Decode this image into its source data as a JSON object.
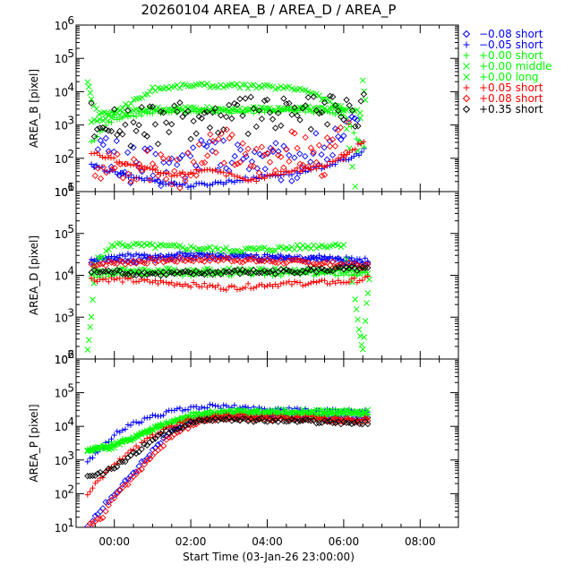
{
  "chart_data": {
    "type": "scatter",
    "title": "20260104 AREA_B / AREA_D / AREA_P",
    "xlabel": "Start Time (03-Jan-26 23:00:00)",
    "x_units": "hours after 00:00 (03-Jan-26 23:00:00 + 1h)",
    "xlim": [
      -1.0,
      9.0
    ],
    "x_ticks": [
      0,
      2,
      4,
      6,
      8
    ],
    "x_tick_labels": [
      "00:00",
      "02:00",
      "04:00",
      "06:00",
      "08:00"
    ],
    "panels": [
      {
        "id": "area_b",
        "ylabel": "AREA_B [pixel]",
        "ylim": [
          10,
          1000000
        ],
        "yscale": "log",
        "y_tick_labels": [
          "10",
          "10",
          "10",
          "10",
          "10",
          "10"
        ],
        "y_tick_exps": [
          "1",
          "2",
          "3",
          "4",
          "5",
          "6"
        ]
      },
      {
        "id": "area_d",
        "ylabel": "AREA_D [pixel]",
        "ylim": [
          100,
          1000000
        ],
        "yscale": "log",
        "y_tick_labels": [
          "10",
          "10",
          "10",
          "10",
          "10"
        ],
        "y_tick_exps": [
          "2",
          "3",
          "4",
          "5",
          "6"
        ]
      },
      {
        "id": "area_p",
        "ylabel": "AREA_P [pixel]",
        "ylim": [
          10,
          1000000
        ],
        "yscale": "log",
        "y_tick_labels": [
          "10",
          "10",
          "10",
          "10",
          "10",
          "10"
        ],
        "y_tick_exps": [
          "1",
          "2",
          "3",
          "4",
          "5",
          "6"
        ]
      }
    ],
    "series": [
      {
        "name": "−0.08 short",
        "symbol": "diamond",
        "color": "#0000ff",
        "area_b": [
          [
            -0.5,
            200
          ],
          [
            0.2,
            80
          ],
          [
            0.8,
            60
          ],
          [
            1.5,
            40
          ],
          [
            2.2,
            150
          ],
          [
            3.0,
            80
          ],
          [
            3.6,
            150
          ],
          [
            4.5,
            60
          ],
          [
            5.2,
            150
          ],
          [
            6.0,
            300
          ],
          [
            6.5,
            1500
          ]
        ],
        "area_d": [
          [
            -0.6,
            20000
          ],
          [
            0.0,
            22000
          ],
          [
            1.0,
            25000
          ],
          [
            2.0,
            28000
          ],
          [
            3.0,
            28000
          ],
          [
            4.0,
            25000
          ],
          [
            5.0,
            24000
          ],
          [
            6.0,
            22000
          ],
          [
            6.7,
            20000
          ]
        ],
        "area_p": [
          [
            -0.7,
            12
          ],
          [
            -0.5,
            20
          ],
          [
            -0.3,
            40
          ],
          [
            0.0,
            100
          ],
          [
            0.5,
            400
          ],
          [
            1.0,
            2000
          ],
          [
            1.5,
            7000
          ],
          [
            2.0,
            14000
          ],
          [
            2.5,
            20000
          ],
          [
            3.0,
            22000
          ],
          [
            4.0,
            20000
          ],
          [
            5.0,
            19000
          ],
          [
            6.0,
            18000
          ],
          [
            6.7,
            17000
          ]
        ]
      },
      {
        "name": "−0.05 short",
        "symbol": "plus",
        "color": "#0000ff",
        "area_b": [
          [
            -0.6,
            60
          ],
          [
            0.3,
            30
          ],
          [
            1.2,
            20
          ],
          [
            2.0,
            15
          ],
          [
            3.0,
            20
          ],
          [
            4.0,
            30
          ],
          [
            5.0,
            40
          ],
          [
            6.2,
            100
          ],
          [
            6.6,
            200
          ]
        ],
        "area_d": [
          [
            -0.6,
            25000
          ],
          [
            0.0,
            28000
          ],
          [
            1.0,
            30000
          ],
          [
            2.0,
            32000
          ],
          [
            3.0,
            30000
          ],
          [
            4.0,
            28000
          ],
          [
            5.0,
            27000
          ],
          [
            6.0,
            25000
          ],
          [
            6.7,
            22000
          ]
        ],
        "area_p": [
          [
            -0.7,
            800
          ],
          [
            -0.5,
            1500
          ],
          [
            -0.3,
            2500
          ],
          [
            0.0,
            6000
          ],
          [
            0.5,
            12000
          ],
          [
            1.0,
            20000
          ],
          [
            1.5,
            28000
          ],
          [
            2.0,
            35000
          ],
          [
            2.5,
            40000
          ],
          [
            3.0,
            38000
          ],
          [
            4.0,
            33000
          ],
          [
            5.0,
            30000
          ],
          [
            6.0,
            28000
          ],
          [
            6.7,
            26000
          ]
        ]
      },
      {
        "name": "+0.00 short",
        "symbol": "plus",
        "color": "#00ff00",
        "area_b": [
          [
            -0.6,
            300
          ],
          [
            -0.3,
            800
          ],
          [
            0.0,
            1500
          ],
          [
            1.0,
            2500
          ],
          [
            2.0,
            2600
          ],
          [
            3.0,
            2500
          ],
          [
            4.0,
            2600
          ],
          [
            5.0,
            2700
          ],
          [
            6.0,
            2200
          ],
          [
            6.4,
            300
          ],
          [
            6.6,
            200
          ]
        ],
        "area_d": [
          [
            -0.6,
            9000
          ],
          [
            0.0,
            10000
          ],
          [
            1.0,
            11000
          ],
          [
            2.0,
            11000
          ],
          [
            3.0,
            11000
          ],
          [
            4.0,
            11000
          ],
          [
            5.0,
            11000
          ],
          [
            6.0,
            11000
          ],
          [
            6.7,
            10000
          ]
        ],
        "area_p": [
          [
            -0.7,
            2000
          ],
          [
            -0.3,
            2500
          ],
          [
            0.0,
            3000
          ],
          [
            0.5,
            5000
          ],
          [
            1.0,
            9000
          ],
          [
            1.5,
            15000
          ],
          [
            2.0,
            22000
          ],
          [
            2.5,
            26000
          ],
          [
            3.0,
            27000
          ],
          [
            4.0,
            26000
          ],
          [
            5.0,
            25000
          ],
          [
            6.0,
            25000
          ],
          [
            6.7,
            24000
          ]
        ]
      },
      {
        "name": "+0.00 middle",
        "symbol": "cross",
        "color": "#00ff00",
        "area_b": [
          [
            -0.6,
            1200
          ],
          [
            0.0,
            2000
          ],
          [
            1.0,
            3000
          ],
          [
            2.0,
            3200
          ],
          [
            3.0,
            3000
          ],
          [
            4.0,
            3100
          ],
          [
            5.0,
            3200
          ],
          [
            6.0,
            3000
          ],
          [
            6.5,
            2500
          ]
        ],
        "area_d": [
          [
            -0.6,
            12000
          ],
          [
            0.0,
            13000
          ],
          [
            1.0,
            13000
          ],
          [
            2.0,
            13000
          ],
          [
            3.0,
            13000
          ],
          [
            4.0,
            13000
          ],
          [
            5.0,
            13000
          ],
          [
            6.0,
            13000
          ],
          [
            6.7,
            12000
          ]
        ],
        "area_p": [
          [
            -0.7,
            1800
          ],
          [
            0.0,
            2500
          ],
          [
            1.0,
            8000
          ],
          [
            2.0,
            20000
          ],
          [
            3.0,
            25000
          ],
          [
            4.0,
            24000
          ],
          [
            5.0,
            23000
          ],
          [
            6.0,
            22000
          ],
          [
            6.7,
            21000
          ]
        ]
      },
      {
        "name": "+0.00 long",
        "symbol": "cross",
        "color": "#00ff00",
        "area_b": [
          [
            -0.7,
            20000
          ],
          [
            -0.6,
            6000
          ],
          [
            -0.4,
            2000
          ],
          [
            0.0,
            2500
          ],
          [
            0.8,
            8000
          ],
          [
            1.0,
            12000
          ],
          [
            2.0,
            16000
          ],
          [
            3.0,
            15000
          ],
          [
            4.0,
            14000
          ],
          [
            5.0,
            12000
          ],
          [
            5.5,
            6000
          ],
          [
            6.0,
            3000
          ],
          [
            6.3,
            15
          ],
          [
            6.5,
            20000
          ],
          [
            6.6,
            3000
          ]
        ],
        "area_d": [
          [
            -0.7,
            150
          ],
          [
            -0.6,
            1000
          ],
          [
            -0.5,
            20000
          ],
          [
            0.0,
            55000
          ],
          [
            1.0,
            50000
          ],
          [
            2.0,
            45000
          ],
          [
            3.0,
            40000
          ],
          [
            4.0,
            42000
          ],
          [
            5.0,
            48000
          ],
          [
            6.0,
            55000
          ],
          [
            6.3,
            3000
          ],
          [
            6.4,
            500
          ],
          [
            6.5,
            150
          ],
          [
            6.6,
            2000
          ],
          [
            6.7,
            15000
          ]
        ],
        "area_p": [
          [
            -0.7,
            2000
          ],
          [
            0.0,
            3000
          ],
          [
            1.0,
            8000
          ],
          [
            2.0,
            20000
          ],
          [
            3.0,
            28000
          ],
          [
            4.0,
            28000
          ],
          [
            5.0,
            28000
          ],
          [
            6.0,
            28000
          ],
          [
            6.7,
            27000
          ]
        ]
      },
      {
        "name": "+0.05 short",
        "symbol": "plus",
        "color": "#ff0000",
        "area_b": [
          [
            -0.6,
            150
          ],
          [
            0.5,
            60
          ],
          [
            1.5,
            30
          ],
          [
            2.5,
            50
          ],
          [
            3.5,
            20
          ],
          [
            4.5,
            40
          ],
          [
            5.5,
            60
          ],
          [
            6.3,
            200
          ],
          [
            6.6,
            400
          ]
        ],
        "area_d": [
          [
            -0.6,
            8000
          ],
          [
            0.0,
            8000
          ],
          [
            1.0,
            7000
          ],
          [
            2.0,
            6000
          ],
          [
            3.0,
            5000
          ],
          [
            4.0,
            6000
          ],
          [
            5.0,
            6500
          ],
          [
            6.0,
            7000
          ],
          [
            6.7,
            8500
          ]
        ],
        "area_p": [
          [
            -0.7,
            100
          ],
          [
            -0.5,
            200
          ],
          [
            -0.3,
            300
          ],
          [
            0.0,
            800
          ],
          [
            0.5,
            2000
          ],
          [
            1.0,
            5000
          ],
          [
            1.5,
            10000
          ],
          [
            2.0,
            16000
          ],
          [
            2.5,
            20000
          ],
          [
            3.0,
            21000
          ],
          [
            4.0,
            19000
          ],
          [
            5.0,
            18000
          ],
          [
            6.0,
            17000
          ],
          [
            6.7,
            16000
          ]
        ]
      },
      {
        "name": "+0.08 short",
        "symbol": "diamond",
        "color": "#ff0000",
        "area_b": [
          [
            -0.5,
            100
          ],
          [
            0.3,
            40
          ],
          [
            1.0,
            80
          ],
          [
            2.0,
            40
          ],
          [
            2.8,
            300
          ],
          [
            3.5,
            80
          ],
          [
            4.5,
            200
          ],
          [
            5.5,
            100
          ],
          [
            6.2,
            400
          ]
        ],
        "area_d": [
          [
            -0.6,
            18000
          ],
          [
            0.0,
            20000
          ],
          [
            1.0,
            22000
          ],
          [
            2.0,
            24000
          ],
          [
            3.0,
            24000
          ],
          [
            4.0,
            22000
          ],
          [
            5.0,
            20000
          ],
          [
            6.0,
            18000
          ],
          [
            6.7,
            16000
          ]
        ],
        "area_p": [
          [
            -0.7,
            10
          ],
          [
            -0.5,
            15
          ],
          [
            -0.3,
            20
          ],
          [
            0.0,
            80
          ],
          [
            0.5,
            300
          ],
          [
            1.0,
            1500
          ],
          [
            1.5,
            5000
          ],
          [
            2.0,
            11000
          ],
          [
            2.5,
            16000
          ],
          [
            3.0,
            18000
          ],
          [
            4.0,
            17000
          ],
          [
            5.0,
            16000
          ],
          [
            6.0,
            15000
          ],
          [
            6.7,
            14000
          ]
        ]
      },
      {
        "name": "+0.35 short",
        "symbol": "diamond",
        "color": "#000000",
        "area_b": [
          [
            -0.6,
            1500
          ],
          [
            0.0,
            1200
          ],
          [
            0.5,
            800
          ],
          [
            1.0,
            1000
          ],
          [
            2.0,
            1500
          ],
          [
            3.0,
            1800
          ],
          [
            4.0,
            2000
          ],
          [
            5.0,
            2200
          ],
          [
            6.0,
            2500
          ],
          [
            6.6,
            3000
          ]
        ],
        "area_d": [
          [
            -0.6,
            12000
          ],
          [
            0.0,
            12000
          ],
          [
            1.0,
            11000
          ],
          [
            2.0,
            11000
          ],
          [
            3.0,
            12000
          ],
          [
            4.0,
            12000
          ],
          [
            5.0,
            13000
          ],
          [
            6.0,
            14000
          ],
          [
            6.7,
            14000
          ]
        ],
        "area_p": [
          [
            -0.7,
            300
          ],
          [
            -0.3,
            400
          ],
          [
            0.0,
            600
          ],
          [
            0.5,
            1500
          ],
          [
            1.0,
            4000
          ],
          [
            1.5,
            8000
          ],
          [
            2.0,
            13000
          ],
          [
            2.5,
            16000
          ],
          [
            3.0,
            17000
          ],
          [
            4.0,
            15000
          ],
          [
            5.0,
            14000
          ],
          [
            6.0,
            13000
          ],
          [
            6.7,
            12000
          ]
        ]
      }
    ]
  }
}
